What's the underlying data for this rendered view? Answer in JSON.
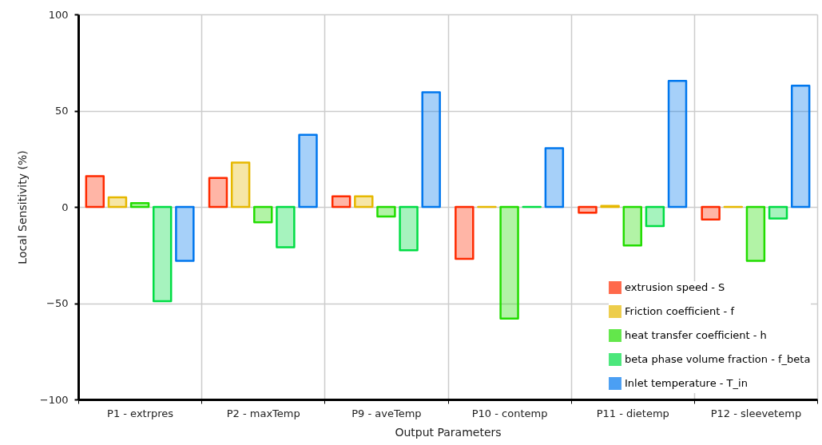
{
  "chart_data": {
    "type": "bar",
    "xlabel": "Output Parameters",
    "ylabel": "Local Sensitivity (%)",
    "categories": [
      "P1 - extrpres",
      "P2 - maxTemp",
      "P9 - aveTemp",
      "P10 - contemp",
      "P11 - dietemp",
      "P12 - sleevetemp"
    ],
    "series": [
      {
        "name": "extrusion speed - S",
        "color": "#ff2a00",
        "values": [
          16,
          15,
          5.5,
          -27,
          -3,
          -6.5
        ]
      },
      {
        "name": "Friction coefficient - f",
        "color": "#e6b800",
        "values": [
          5,
          23,
          5.5,
          0,
          0.5,
          0
        ]
      },
      {
        "name": "heat transfer coefficient - h",
        "color": "#22dd00",
        "values": [
          2,
          -8,
          -5,
          -58,
          -20,
          -28
        ]
      },
      {
        "name": "beta phase volume fraction - f_beta",
        "color": "#00dd44",
        "values": [
          -49,
          -21,
          -22.5,
          0,
          -10,
          -6
        ]
      },
      {
        "name": "Inlet temperature - T_in",
        "color": "#0077ee",
        "values": [
          -28,
          37.5,
          59.5,
          30.5,
          65.5,
          63
        ]
      }
    ],
    "ylim": [
      -100,
      100
    ],
    "yticks": [
      -100,
      -50,
      0,
      50,
      100
    ],
    "grid": true,
    "legend": "bottom right"
  }
}
